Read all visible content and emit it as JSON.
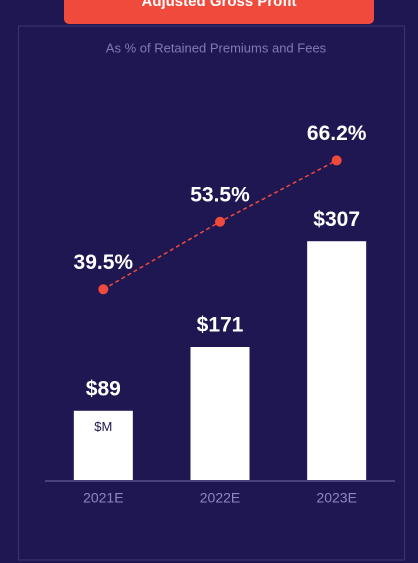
{
  "chart_data": {
    "type": "bar",
    "title": "Adjusted Gross Profit",
    "subtitle": "As % of Retained Premiums and Fees",
    "unit_label": "$M",
    "categories": [
      "2021E",
      "2022E",
      "2023E"
    ],
    "series": [
      {
        "name": "Adjusted Gross Profit",
        "type": "bar",
        "color": "#ffffff",
        "values": [
          89,
          171,
          307
        ],
        "value_labels": [
          "$89",
          "$171",
          "$307"
        ]
      },
      {
        "name": "As % of Retained Premiums and Fees",
        "type": "line",
        "axis": "y2",
        "color": "#ef4a3c",
        "values": [
          39.5,
          53.5,
          66.2
        ],
        "value_labels": [
          "39.5%",
          "53.5%",
          "66.2%"
        ]
      }
    ],
    "ylim": [
      0,
      450
    ],
    "y2lim": [
      0,
      72.5
    ]
  }
}
